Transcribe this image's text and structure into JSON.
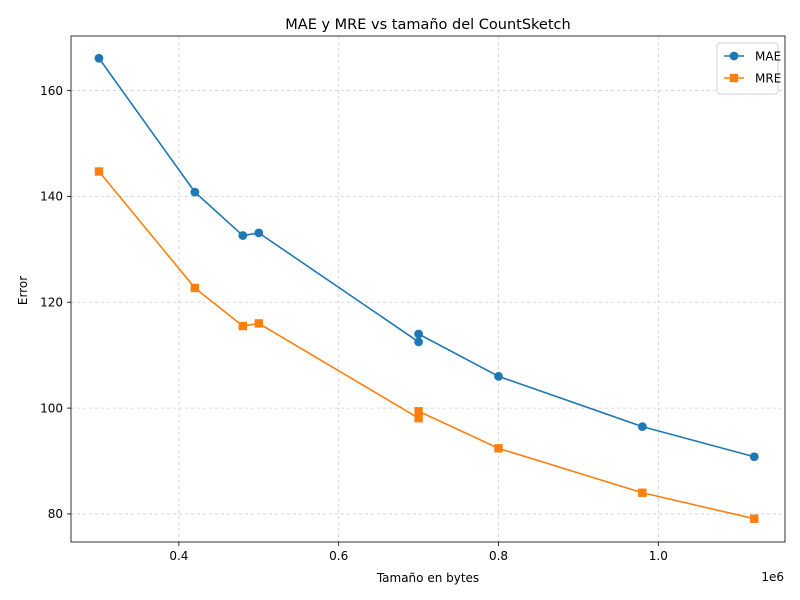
{
  "chart_data": {
    "type": "line",
    "title": "MAE y MRE vs tamaño del CountSketch",
    "xlabel": "Tamaño en bytes",
    "ylabel": "Error",
    "x_offset_text": "1e6",
    "xlim": [
      0.265,
      1.1585
    ],
    "ylim": [
      74.7,
      170.3
    ],
    "xticks": [
      0.4,
      0.6,
      0.8,
      1.0
    ],
    "xtick_labels": [
      "0.4",
      "0.6",
      "0.8",
      "1.0"
    ],
    "yticks": [
      80,
      100,
      120,
      140,
      160
    ],
    "ytick_labels": [
      "80",
      "100",
      "120",
      "140",
      "160"
    ],
    "grid": true,
    "legend_position": "top-right",
    "series": [
      {
        "name": "MAE",
        "color": "#1f77b4",
        "marker": "circle",
        "x": [
          0.3,
          0.42,
          0.48,
          0.5,
          0.7,
          0.7,
          0.8,
          0.98,
          1.12
        ],
        "y": [
          166.1,
          140.8,
          132.6,
          133.1,
          112.5,
          114.0,
          106.0,
          96.5,
          90.8
        ]
      },
      {
        "name": "MRE",
        "color": "#ff7f0e",
        "marker": "square",
        "x": [
          0.3,
          0.42,
          0.48,
          0.5,
          0.7,
          0.7,
          0.8,
          0.98,
          1.12
        ],
        "y": [
          144.7,
          122.7,
          115.5,
          116.0,
          98.1,
          99.4,
          92.4,
          84.0,
          79.1
        ]
      }
    ]
  }
}
